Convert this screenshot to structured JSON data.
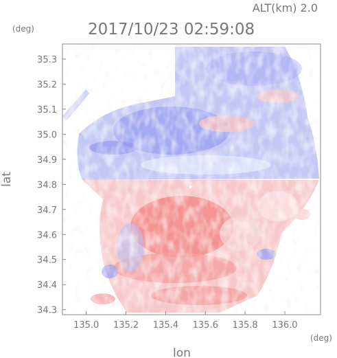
{
  "header": {
    "altitude": "ALT(km) 2.0",
    "timestamp": "2017/10/23 02:59:08"
  },
  "axes": {
    "x": {
      "label": "lon",
      "unit": "(deg)",
      "ticks": [
        "135.0",
        "135.2",
        "135.4",
        "135.6",
        "135.8",
        "136.0"
      ],
      "range": [
        134.88,
        136.18
      ]
    },
    "y": {
      "label": "lat",
      "unit": "(deg)",
      "ticks": [
        "34.3",
        "34.4",
        "34.5",
        "34.6",
        "34.7",
        "34.8",
        "34.9",
        "35.0",
        "35.1",
        "35.2",
        "35.3"
      ],
      "range": [
        34.28,
        35.36
      ]
    }
  },
  "radar": {
    "center": {
      "lon": 135.525,
      "lat": 34.79
    },
    "colors": {
      "toward": "#f08080",
      "away": "#7f85ee",
      "light_toward": "#f8c8c8",
      "light_away": "#c0c6f5"
    }
  }
}
